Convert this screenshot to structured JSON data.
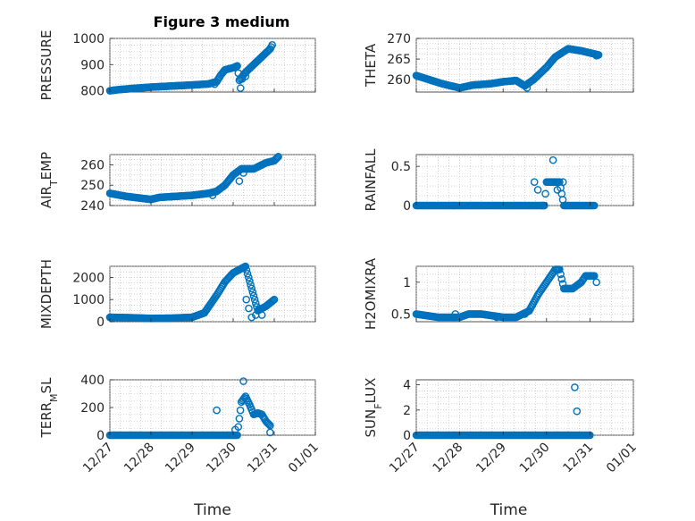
{
  "chart_data": {
    "type": "scatter",
    "title": "Figure 3 medium",
    "marker_color": "#0072bd",
    "x_tick_labels": [
      "12/27",
      "12/28",
      "12/29",
      "12/30",
      "12/31",
      "01/01"
    ],
    "x_range_days": [
      0,
      5
    ],
    "x_label": "Time",
    "panels": [
      {
        "id": "pressure",
        "ylabel": "PRESSURE",
        "sub": "",
        "ylim": [
          795,
          1000
        ],
        "yticks": [
          800,
          900,
          1000
        ],
        "series": [
          [
            0,
            800
          ],
          [
            0.2,
            804
          ],
          [
            0.5,
            808
          ],
          [
            1.0,
            814
          ],
          [
            1.5,
            818
          ],
          [
            2.0,
            822
          ],
          [
            2.4,
            826
          ],
          [
            2.6,
            835
          ],
          [
            2.7,
            860
          ],
          [
            2.8,
            880
          ],
          [
            3.0,
            888
          ],
          [
            3.1,
            895
          ],
          [
            3.15,
            840
          ],
          [
            3.2,
            850
          ],
          [
            3.3,
            870
          ],
          [
            3.5,
            900
          ],
          [
            3.7,
            930
          ],
          [
            3.9,
            960
          ],
          [
            3.95,
            975
          ]
        ],
        "outliers": [
          [
            2.55,
            825
          ],
          [
            3.18,
            810
          ],
          [
            3.22,
            845
          ],
          [
            3.3,
            855
          ]
        ]
      },
      {
        "id": "theta",
        "ylabel": "THETA",
        "sub": "",
        "ylim": [
          257,
          270
        ],
        "yticks": [
          260,
          265,
          270
        ],
        "series": [
          [
            0,
            261
          ],
          [
            0.3,
            260
          ],
          [
            0.6,
            259
          ],
          [
            1.0,
            258
          ],
          [
            1.3,
            258.7
          ],
          [
            1.7,
            259
          ],
          [
            2.0,
            259.5
          ],
          [
            2.3,
            259.8
          ],
          [
            2.5,
            258.5
          ],
          [
            2.7,
            260
          ],
          [
            3.0,
            263
          ],
          [
            3.2,
            265.5
          ],
          [
            3.5,
            267.5
          ],
          [
            3.8,
            267
          ],
          [
            4.0,
            266.5
          ],
          [
            4.2,
            266
          ]
        ],
        "outliers": [
          [
            2.55,
            258
          ],
          [
            4.15,
            265.8
          ]
        ]
      },
      {
        "id": "air_temp",
        "ylabel": "AIR",
        "sub": "T",
        "ylabel_suffix": "EMP",
        "ylim": [
          240,
          265
        ],
        "yticks": [
          240,
          250,
          260
        ],
        "series": [
          [
            0,
            246
          ],
          [
            0.4,
            244.5
          ],
          [
            0.8,
            243.5
          ],
          [
            1.0,
            243
          ],
          [
            1.2,
            244
          ],
          [
            1.6,
            244.5
          ],
          [
            2.0,
            245
          ],
          [
            2.4,
            246
          ],
          [
            2.6,
            247
          ],
          [
            2.8,
            250
          ],
          [
            3.0,
            255
          ],
          [
            3.2,
            258
          ],
          [
            3.5,
            258
          ],
          [
            3.8,
            261
          ],
          [
            4.0,
            262
          ],
          [
            4.1,
            264
          ]
        ],
        "outliers": [
          [
            2.5,
            245
          ],
          [
            3.15,
            252
          ],
          [
            3.25,
            256
          ],
          [
            4.05,
            263
          ]
        ]
      },
      {
        "id": "rainfall",
        "ylabel": "RAINFALL",
        "sub": "",
        "ylim": [
          0,
          0.65
        ],
        "yticks": [
          0,
          0.5
        ],
        "series": [
          [
            0,
            0
          ],
          [
            1.0,
            0
          ],
          [
            2.0,
            0
          ],
          [
            2.9,
            0
          ],
          [
            2.92,
            0
          ],
          [
            2.95,
            0
          ],
          [
            3.0,
            0.3
          ],
          [
            3.2,
            0.3
          ],
          [
            3.3,
            0.3
          ],
          [
            3.4,
            0
          ],
          [
            3.6,
            0
          ],
          [
            3.8,
            0
          ],
          [
            4.0,
            0
          ],
          [
            4.1,
            0
          ]
        ],
        "outliers": [
          [
            2.72,
            0.3
          ],
          [
            2.8,
            0.2
          ],
          [
            3.15,
            0.58
          ],
          [
            3.25,
            0.2
          ],
          [
            3.38,
            0.3
          ]
        ]
      },
      {
        "id": "mixdepth",
        "ylabel": "MIXDEPTH",
        "sub": "",
        "ylim": [
          0,
          2500
        ],
        "yticks": [
          0,
          1000,
          2000
        ],
        "series": [
          [
            0,
            200
          ],
          [
            0.5,
            180
          ],
          [
            1.0,
            150
          ],
          [
            1.5,
            160
          ],
          [
            2.0,
            200
          ],
          [
            2.3,
            400
          ],
          [
            2.6,
            1200
          ],
          [
            2.8,
            1800
          ],
          [
            3.0,
            2200
          ],
          [
            3.2,
            2400
          ],
          [
            3.3,
            2500
          ],
          [
            3.6,
            500
          ],
          [
            3.8,
            700
          ],
          [
            4.0,
            1000
          ]
        ],
        "outliers": [
          [
            3.32,
            1000
          ],
          [
            3.38,
            600
          ],
          [
            3.45,
            200
          ],
          [
            3.55,
            300
          ],
          [
            3.7,
            300
          ]
        ]
      },
      {
        "id": "h2omixra",
        "ylabel": "H2OMIXRA",
        "sub": "",
        "ylim": [
          0.38,
          1.25
        ],
        "yticks": [
          0.5,
          1
        ],
        "series": [
          [
            0,
            0.5
          ],
          [
            0.5,
            0.45
          ],
          [
            1.0,
            0.45
          ],
          [
            1.2,
            0.5
          ],
          [
            1.5,
            0.5
          ],
          [
            2.0,
            0.45
          ],
          [
            2.3,
            0.45
          ],
          [
            2.6,
            0.55
          ],
          [
            2.8,
            0.8
          ],
          [
            3.0,
            1.0
          ],
          [
            3.2,
            1.2
          ],
          [
            3.3,
            1.2
          ],
          [
            3.4,
            0.9
          ],
          [
            3.6,
            0.9
          ],
          [
            3.8,
            1.0
          ],
          [
            3.9,
            1.1
          ],
          [
            4.1,
            1.1
          ]
        ],
        "outliers": [
          [
            0.9,
            0.5
          ],
          [
            1.85,
            0.45
          ],
          [
            2.5,
            0.5
          ],
          [
            4.15,
            1.0
          ]
        ]
      },
      {
        "id": "terr_msl",
        "ylabel": "TERR",
        "sub": "M",
        "ylabel_suffix": "SL",
        "ylim": [
          0,
          400
        ],
        "yticks": [
          0,
          200,
          400
        ],
        "series": [
          [
            0,
            0
          ],
          [
            1.0,
            0
          ],
          [
            2.0,
            0
          ],
          [
            3.0,
            0
          ],
          [
            3.1,
            0
          ],
          [
            3.2,
            240
          ],
          [
            3.3,
            280
          ],
          [
            3.4,
            220
          ],
          [
            3.5,
            150
          ],
          [
            3.6,
            160
          ],
          [
            3.7,
            150
          ],
          [
            3.8,
            100
          ],
          [
            3.9,
            70
          ]
        ],
        "outliers": [
          [
            2.6,
            180
          ],
          [
            3.05,
            40
          ],
          [
            3.25,
            390
          ],
          [
            3.9,
            20
          ]
        ]
      },
      {
        "id": "sun_flux",
        "ylabel": "SUN",
        "sub": "F",
        "ylabel_suffix": "LUX",
        "ylim": [
          0,
          4.4
        ],
        "yticks": [
          0,
          2,
          4
        ],
        "series": [
          [
            0,
            0
          ],
          [
            1.0,
            0
          ],
          [
            2.0,
            0
          ],
          [
            3.0,
            0
          ],
          [
            3.5,
            0
          ],
          [
            3.8,
            0
          ],
          [
            4.0,
            0
          ]
        ],
        "outliers": [
          [
            3.65,
            3.8
          ],
          [
            3.7,
            1.9
          ]
        ]
      }
    ]
  }
}
